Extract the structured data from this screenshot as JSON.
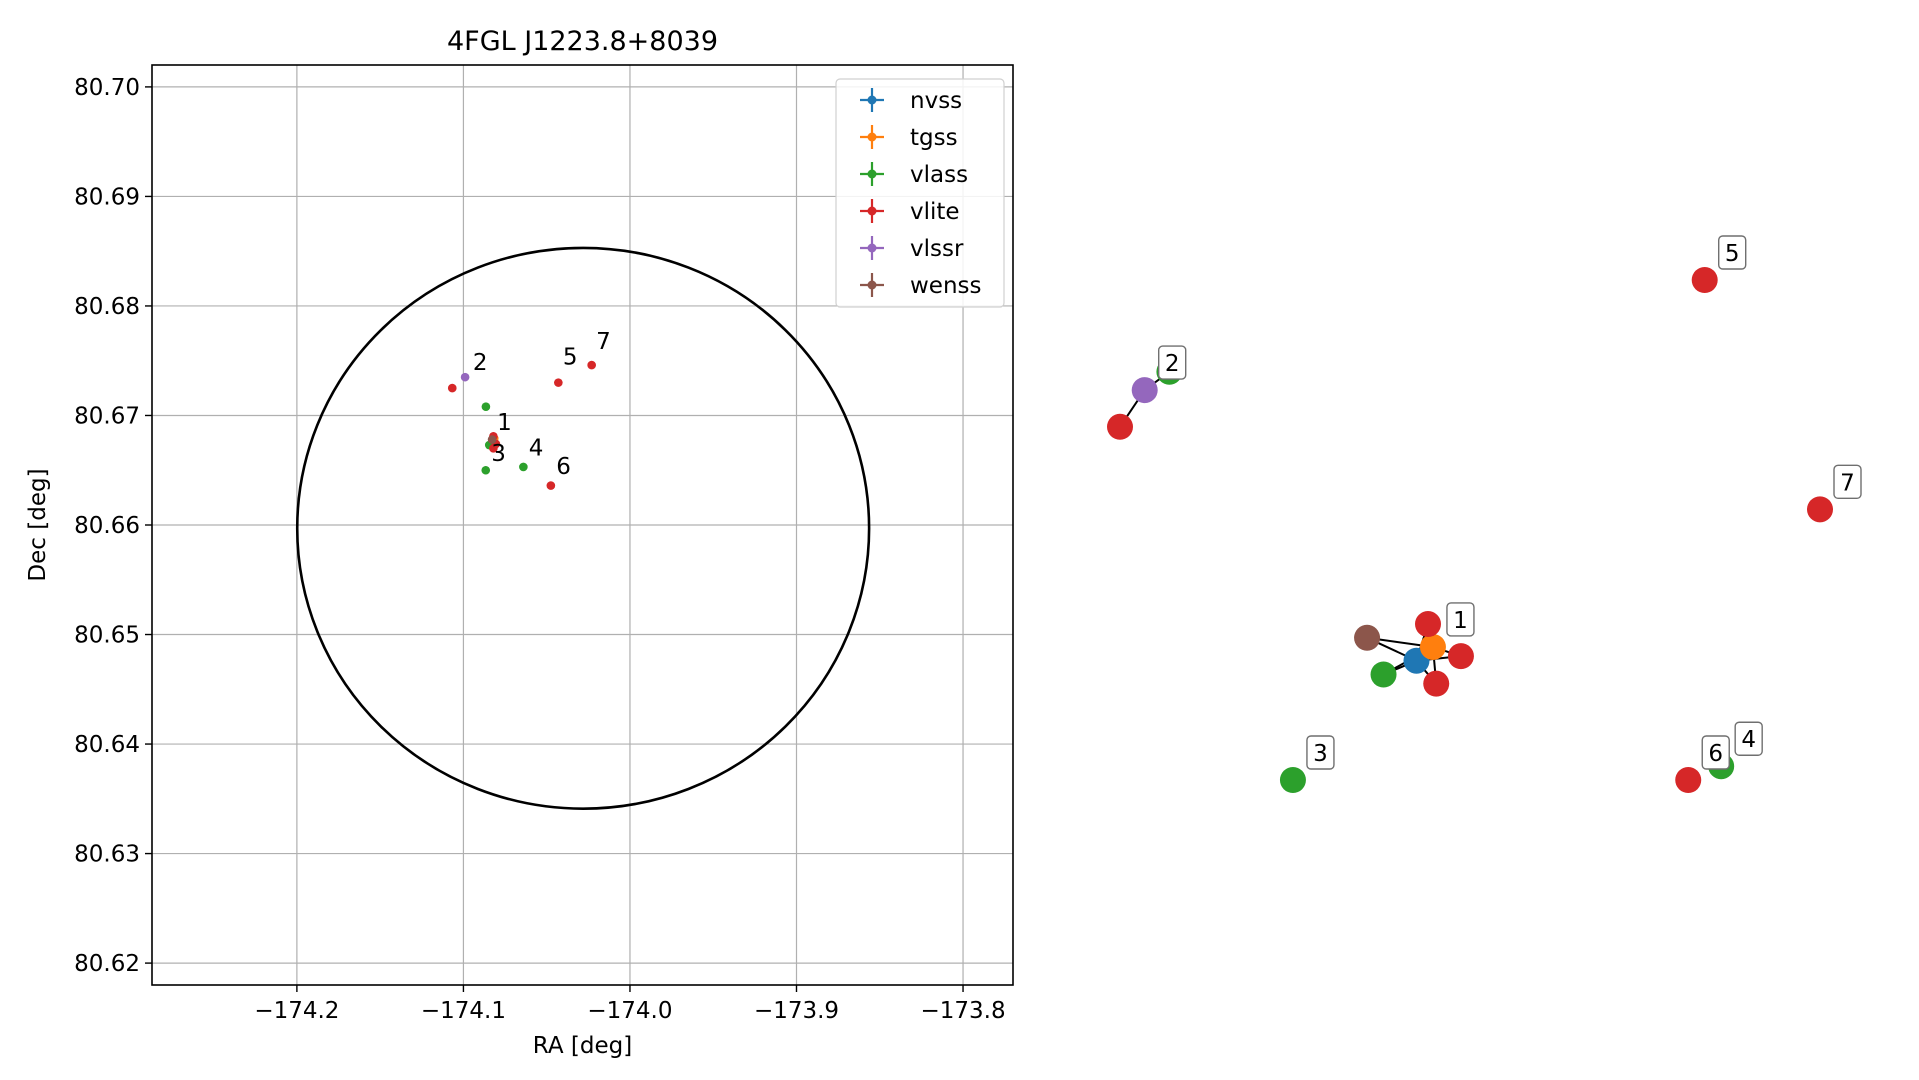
{
  "chart_data": [
    {
      "type": "scatter",
      "title": "4FGL J1223.8+8039",
      "xlabel": "RA [deg]",
      "ylabel": "Dec [deg]",
      "xlim": [
        -174.287,
        -173.77
      ],
      "ylim": [
        80.618,
        80.702
      ],
      "xticks": [
        -174.2,
        -174.1,
        -174.0,
        -173.9,
        -173.8
      ],
      "xtick_labels": [
        "−174.2",
        "−174.1",
        "−174.0",
        "−173.9",
        "−173.8"
      ],
      "yticks": [
        80.62,
        80.63,
        80.64,
        80.65,
        80.66,
        80.67,
        80.68,
        80.69,
        80.7
      ],
      "ytick_labels": [
        "80.62",
        "80.63",
        "80.64",
        "80.65",
        "80.66",
        "80.67",
        "80.68",
        "80.69",
        "80.70"
      ],
      "grid": true,
      "legend_position": "top-right",
      "circle": {
        "center_ra": -174.0281,
        "center_dec": 80.6597,
        "semi_ra": 0.1717,
        "semi_dec": 0.0256,
        "color": "#000000"
      },
      "series": [
        {
          "name": "nvss",
          "color": "#1f77b4",
          "points": [
            [
              -174.0825,
              80.6676
            ]
          ]
        },
        {
          "name": "tgss",
          "color": "#ff7f0e",
          "points": [
            [
              -174.0815,
              80.6679
            ]
          ]
        },
        {
          "name": "vlass",
          "color": "#2ca02c",
          "points": [
            [
              -174.0865,
              80.6708
            ],
            [
              -174.0866,
              80.665
            ],
            [
              -174.064,
              80.6653
            ],
            [
              -174.0845,
              80.6673
            ]
          ]
        },
        {
          "name": "vlite",
          "color": "#d62728",
          "points": [
            [
              -174.1067,
              80.6725
            ],
            [
              -174.043,
              80.673
            ],
            [
              -174.023,
              80.6746
            ],
            [
              -174.0475,
              80.6636
            ],
            [
              -174.082,
              80.6681
            ],
            [
              -174.0805,
              80.6674
            ],
            [
              -174.082,
              80.667
            ]
          ]
        },
        {
          "name": "vlssr",
          "color": "#9467bd",
          "points": [
            [
              -174.099,
              80.6735
            ]
          ]
        },
        {
          "name": "wenss",
          "color": "#8c564b",
          "points": [
            [
              -174.0828,
              80.6678
            ]
          ]
        }
      ],
      "labels": [
        {
          "text": "1",
          "ra": -174.081,
          "dec": 80.6683
        },
        {
          "text": "2",
          "ra": -174.0955,
          "dec": 80.6738
        },
        {
          "text": "3",
          "ra": -174.0845,
          "dec": 80.6655
        },
        {
          "text": "4",
          "ra": -174.062,
          "dec": 80.666
        },
        {
          "text": "5",
          "ra": -174.0415,
          "dec": 80.6743
        },
        {
          "text": "6",
          "ra": -174.0455,
          "dec": 80.6643
        },
        {
          "text": "7",
          "ra": -174.0215,
          "dec": 80.6757
        }
      ]
    },
    {
      "type": "network",
      "nodes": [
        {
          "id": "n-nvss",
          "color": "#1f77b4",
          "ra": -174.0825,
          "dec": 80.6676
        },
        {
          "id": "n-tgss",
          "color": "#ff7f0e",
          "ra": -174.0815,
          "dec": 80.6679
        },
        {
          "id": "n-wenss",
          "color": "#8c564b",
          "ra": -174.0855,
          "dec": 80.6681
        },
        {
          "id": "n-vlite-1a",
          "color": "#d62728",
          "ra": -174.0818,
          "dec": 80.6684
        },
        {
          "id": "n-vlite-1b",
          "color": "#d62728",
          "ra": -174.0798,
          "dec": 80.6677
        },
        {
          "id": "n-vlite-1c",
          "color": "#d62728",
          "ra": -174.0813,
          "dec": 80.6671
        },
        {
          "id": "n-vlass-1",
          "color": "#2ca02c",
          "ra": -174.0845,
          "dec": 80.6673
        },
        {
          "id": "n-vlssr",
          "color": "#9467bd",
          "ra": -174.099,
          "dec": 80.6735
        },
        {
          "id": "n-vlass-2",
          "color": "#2ca02c",
          "ra": -174.0975,
          "dec": 80.6739
        },
        {
          "id": "n-vlite-2",
          "color": "#d62728",
          "ra": -174.1005,
          "dec": 80.6727
        },
        {
          "id": "n-vlass-3",
          "color": "#2ca02c",
          "ra": -174.09,
          "dec": 80.665
        },
        {
          "id": "n-vlass-4",
          "color": "#2ca02c",
          "ra": -174.064,
          "dec": 80.6653
        },
        {
          "id": "n-vlite-5",
          "color": "#d62728",
          "ra": -174.065,
          "dec": 80.6759
        },
        {
          "id": "n-vlite-6",
          "color": "#d62728",
          "ra": -174.066,
          "dec": 80.665
        },
        {
          "id": "n-vlite-7",
          "color": "#d62728",
          "ra": -174.058,
          "dec": 80.6709
        }
      ],
      "edges": [
        [
          "n-wenss",
          "n-nvss"
        ],
        [
          "n-wenss",
          "n-tgss"
        ],
        [
          "n-vlass-1",
          "n-nvss"
        ],
        [
          "n-vlass-1",
          "n-tgss"
        ],
        [
          "n-nvss",
          "n-vlite-1a"
        ],
        [
          "n-nvss",
          "n-vlite-1b"
        ],
        [
          "n-nvss",
          "n-vlite-1c"
        ],
        [
          "n-tgss",
          "n-vlite-1a"
        ],
        [
          "n-tgss",
          "n-vlite-1b"
        ],
        [
          "n-tgss",
          "n-vlite-1c"
        ],
        [
          "n-vlssr",
          "n-vlite-2"
        ],
        [
          "n-vlssr",
          "n-vlass-2"
        ]
      ],
      "labels": [
        {
          "text": "1",
          "node": "n-tgss"
        },
        {
          "text": "2",
          "node": "n-vlssr"
        },
        {
          "text": "3",
          "node": "n-vlass-3"
        },
        {
          "text": "4",
          "node": "n-vlass-4"
        },
        {
          "text": "5",
          "node": "n-vlite-5"
        },
        {
          "text": "6",
          "node": "n-vlite-6"
        },
        {
          "text": "7",
          "node": "n-vlite-7"
        }
      ]
    }
  ]
}
